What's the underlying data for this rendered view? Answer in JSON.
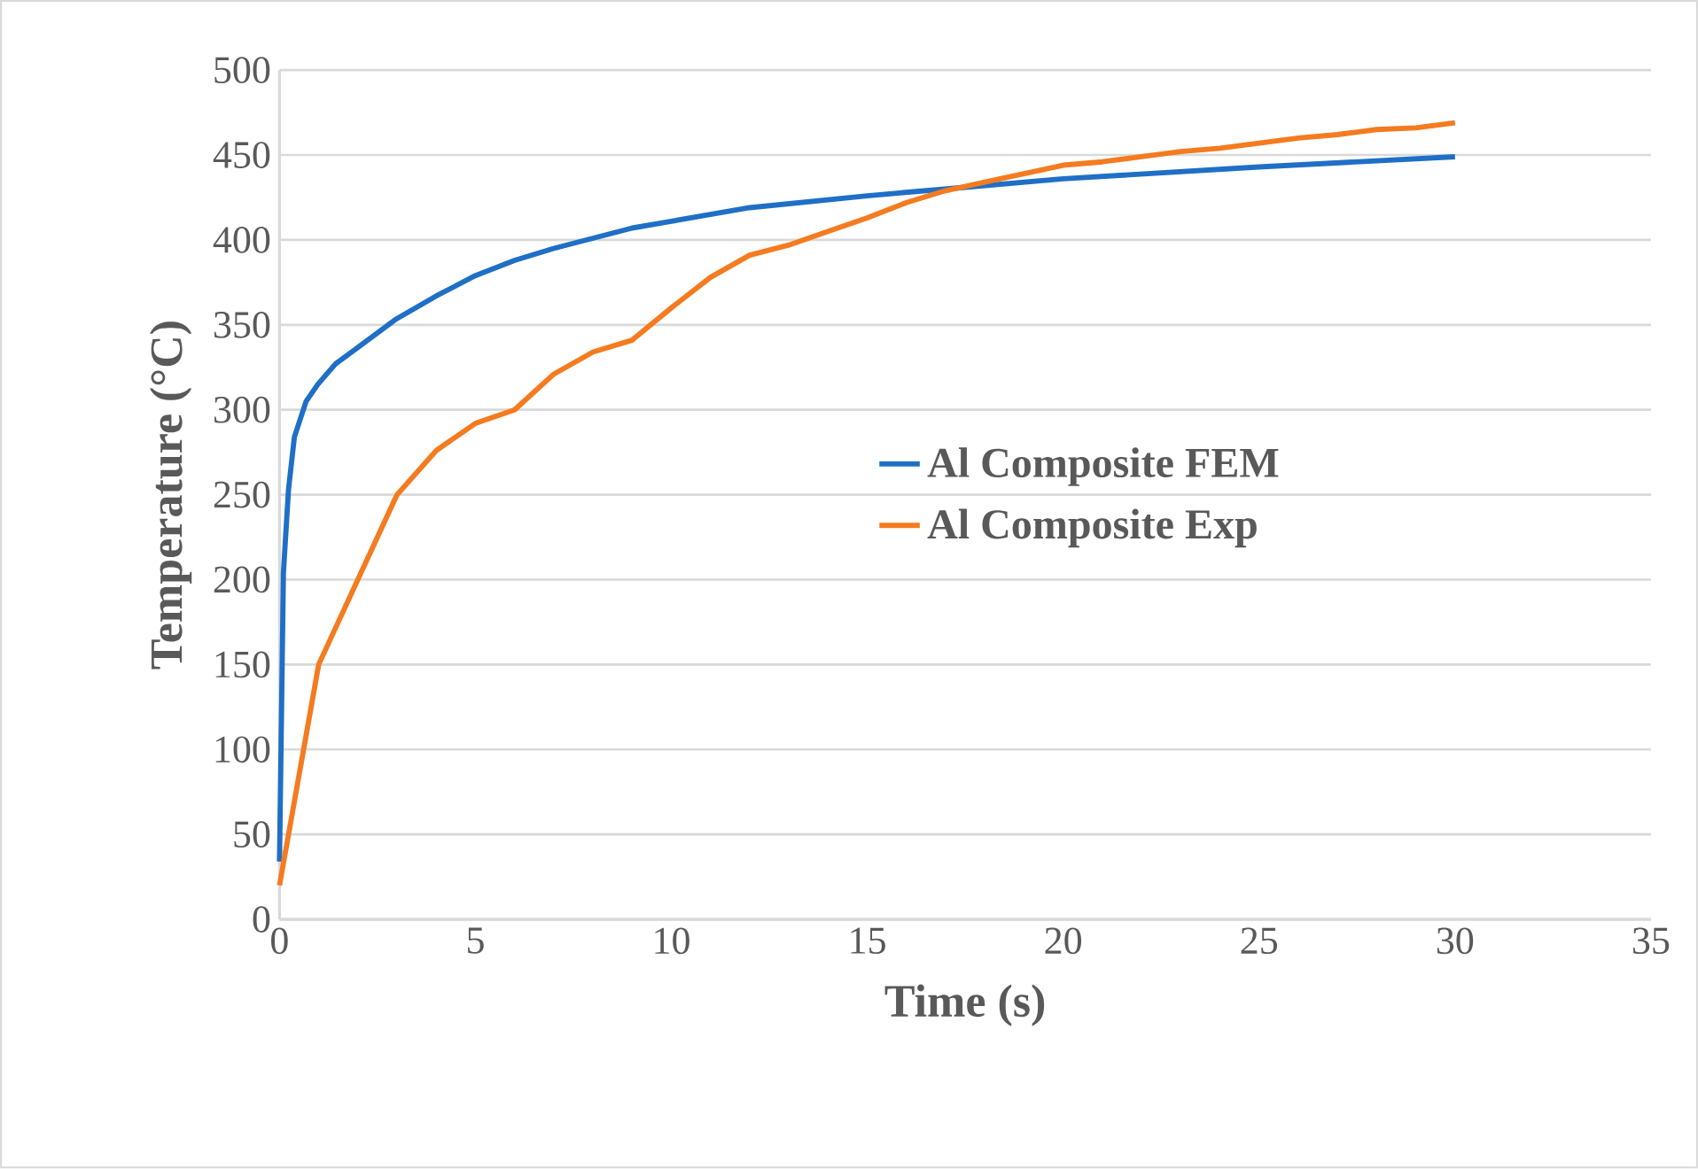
{
  "chart_data": {
    "type": "line",
    "xlabel": "Time (s)",
    "ylabel": "Temperature (°C)",
    "xlim": [
      0,
      35
    ],
    "ylim": [
      0,
      500
    ],
    "xticks": [
      0,
      5,
      10,
      15,
      20,
      25,
      30,
      35
    ],
    "yticks": [
      0,
      50,
      100,
      150,
      200,
      250,
      300,
      350,
      400,
      450,
      500
    ],
    "grid": "y",
    "legend": "right",
    "marker": "none",
    "line_style": "solid",
    "series": [
      {
        "name": "Al Composite FEM",
        "color": "#1f6fc6",
        "x": [
          0,
          0.1,
          0.23,
          0.38,
          0.68,
          0.98,
          1.43,
          1.96,
          2.95,
          4,
          5,
          6,
          7,
          8,
          9,
          10,
          12,
          15,
          17.5,
          20,
          25,
          30
        ],
        "values": [
          34,
          204,
          253,
          284,
          305,
          315,
          327,
          336,
          353,
          367,
          379,
          388,
          395,
          401,
          407,
          411,
          419,
          426,
          431,
          436,
          443,
          449
        ]
      },
      {
        "name": "Al Composite Exp",
        "color": "#f47b20",
        "x": [
          0,
          1,
          3,
          4,
          5,
          6,
          7,
          8,
          9,
          10,
          11,
          12,
          13,
          14,
          15,
          16,
          17,
          18,
          19,
          20,
          21,
          22,
          23,
          24,
          25,
          26,
          27,
          28,
          29,
          30
        ],
        "values": [
          20,
          150,
          250,
          276,
          292,
          300,
          321,
          334,
          341,
          360,
          378,
          391,
          397,
          405,
          413,
          422,
          429,
          434,
          439,
          444,
          446,
          449,
          452,
          454,
          457,
          460,
          462,
          465,
          466,
          469
        ]
      }
    ]
  }
}
